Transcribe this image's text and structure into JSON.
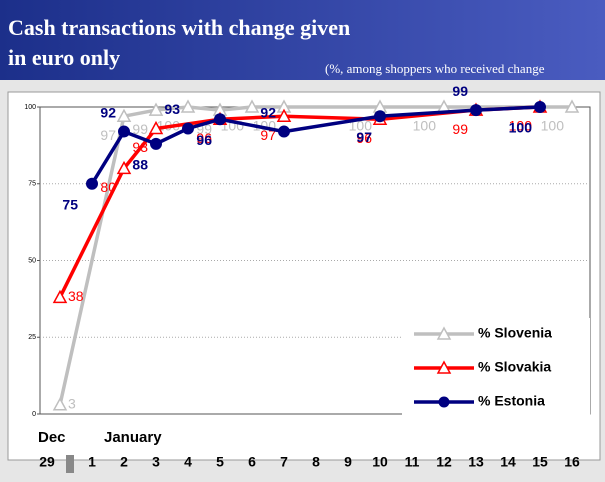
{
  "chart_data": {
    "type": "line",
    "title": [
      "Cash transactions with change given",
      "in euro only"
    ],
    "subtitle": "(%, among shoppers who received change",
    "categories": [
      "29",
      "1",
      "2",
      "3",
      "4",
      "5",
      "6",
      "7",
      "8",
      "9",
      "10",
      "11",
      "12",
      "13",
      "14",
      "15",
      "16"
    ],
    "period_labels": [
      "Dec",
      "January"
    ],
    "ylim": [
      0,
      100
    ],
    "yticks": [
      0,
      25,
      50,
      75,
      100
    ],
    "grid": true,
    "legend": "lower right",
    "series": [
      {
        "name": "% Slovenia",
        "color": "#bfbfbf",
        "marker": "triangle",
        "x": [
          "29",
          "2",
          "3",
          "4",
          "5",
          "6",
          "7",
          "10",
          "12",
          "16"
        ],
        "values": [
          3,
          97,
          99,
          100,
          99,
          100,
          100,
          100,
          100,
          100
        ]
      },
      {
        "name": "% Slovakia",
        "color": "#ff0000",
        "marker": "triangle",
        "x": [
          "29",
          "2",
          "3",
          "5",
          "7",
          "10",
          "13",
          "15"
        ],
        "values": [
          38,
          80,
          93,
          96,
          97,
          96,
          99,
          100
        ]
      },
      {
        "name": "% Estonia",
        "color": "#000080",
        "marker": "circle",
        "x": [
          "1",
          "2",
          "3",
          "4",
          "5",
          "7",
          "10",
          "13",
          "15"
        ],
        "values": [
          75,
          92,
          88,
          93,
          96,
          92,
          97,
          99,
          100
        ]
      }
    ]
  }
}
